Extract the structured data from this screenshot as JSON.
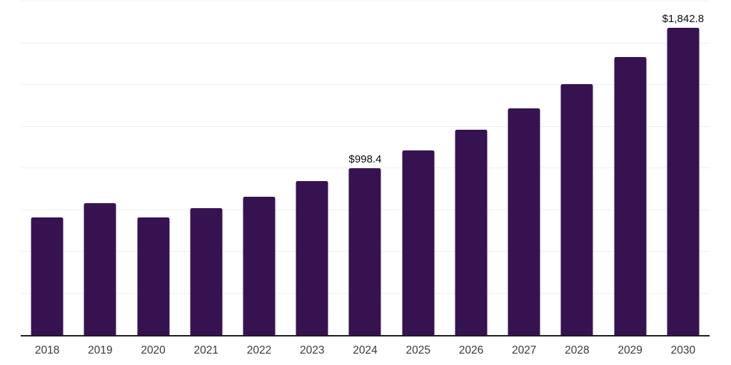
{
  "chart_data": {
    "type": "bar",
    "categories": [
      "2018",
      "2019",
      "2020",
      "2021",
      "2022",
      "2023",
      "2024",
      "2025",
      "2026",
      "2027",
      "2028",
      "2029",
      "2030"
    ],
    "values": [
      706,
      792,
      704,
      762,
      828,
      925,
      998.4,
      1106,
      1229,
      1360,
      1505,
      1667,
      1842.8
    ],
    "data_labels": [
      null,
      null,
      null,
      null,
      null,
      null,
      "$998.4",
      null,
      null,
      null,
      null,
      null,
      "$1,842.8"
    ],
    "ylim": [
      0,
      2000
    ],
    "y_gridline_step": 250,
    "grid": "horizontal-light",
    "legend_position": "none",
    "colors": {
      "bar": "#371250",
      "gridline": "#f0f0f0",
      "axis_line": "#1c1c1c",
      "tick_label": "#3a3a3a",
      "data_label": "#0a0a0a",
      "background": "#ffffff"
    }
  }
}
